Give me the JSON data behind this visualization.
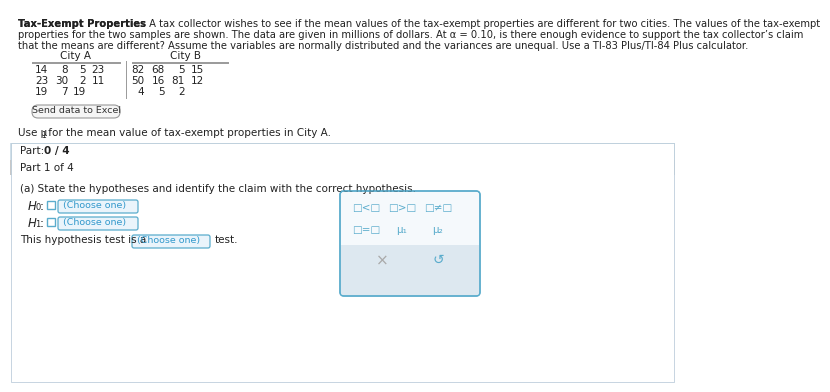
{
  "title_bold": "Tax-Exempt Properties",
  "title_line1_rest": " A tax collector wishes to see if the mean values of the tax-exempt properties are different for two cities. The values of the tax-exempt",
  "title_line2": "properties for the two samples are shown. The data are given in millions of dollars. At α = 0.10, is there enough evidence to support the tax collector’s claim",
  "title_line3": "that the means are different? Assume the variables are normally distributed and the variances are unequal. Use a TI-83 Plus/TI-84 Plus calculator.",
  "city_a_label": "City A",
  "city_b_label": "City B",
  "city_a_row1": [
    14,
    8,
    5,
    23
  ],
  "city_a_row2": [
    23,
    30,
    2,
    11
  ],
  "city_a_row3": [
    19,
    7,
    19
  ],
  "city_b_row1": [
    82,
    68,
    5,
    15
  ],
  "city_b_row2": [
    50,
    16,
    81,
    12
  ],
  "city_b_row3": [
    4,
    5,
    2
  ],
  "send_excel_btn": "Send data to Excel",
  "mu_note_pre": "Use μ",
  "mu_note_sub": "1",
  "mu_note_post": " for the mean value of tax-exempt properties in City A.",
  "part_label_pre": "Part: ",
  "part_label_bold": "0 / 4",
  "part_bar_color": "#aecde0",
  "part_header_bg": "#d0dfe9",
  "part1_label": "Part 1 of 4",
  "part1_bg": "#c8c8c8",
  "question_text": "(a) State the hypotheses and identify the claim with the correct hypothesis.",
  "h0_label": "H",
  "h0_sub": "0",
  "h1_label": "H",
  "h1_sub": "1",
  "choose_one_text": "(Choose one)",
  "choose_one_bg": "#eaf4fb",
  "choose_one_border": "#5aaccc",
  "choose_one_text_color": "#3399cc",
  "dropdown_arrow_color": "#3399cc",
  "sym_row1": [
    "□<□",
    "□>□",
    "□≠□"
  ],
  "sym_row2_left": "□=□",
  "sym_row2_mu1": "μ₁",
  "sym_row2_mu2": "μ₂",
  "popup_bg": "#f5f9fc",
  "popup_border": "#5aaccc",
  "popup_bottom_bg": "#dde8f0",
  "x_symbol": "×",
  "refresh_symbol": "↺",
  "this_test_text": "This hypothesis test is a",
  "test_suffix": "test.",
  "bg_color": "#ffffff",
  "table_border": "#999999",
  "text_color": "#222222",
  "sym_color": "#5aaccc",
  "content_border_color": "#b0c4d4",
  "checkbox_border": "#5aaccc"
}
